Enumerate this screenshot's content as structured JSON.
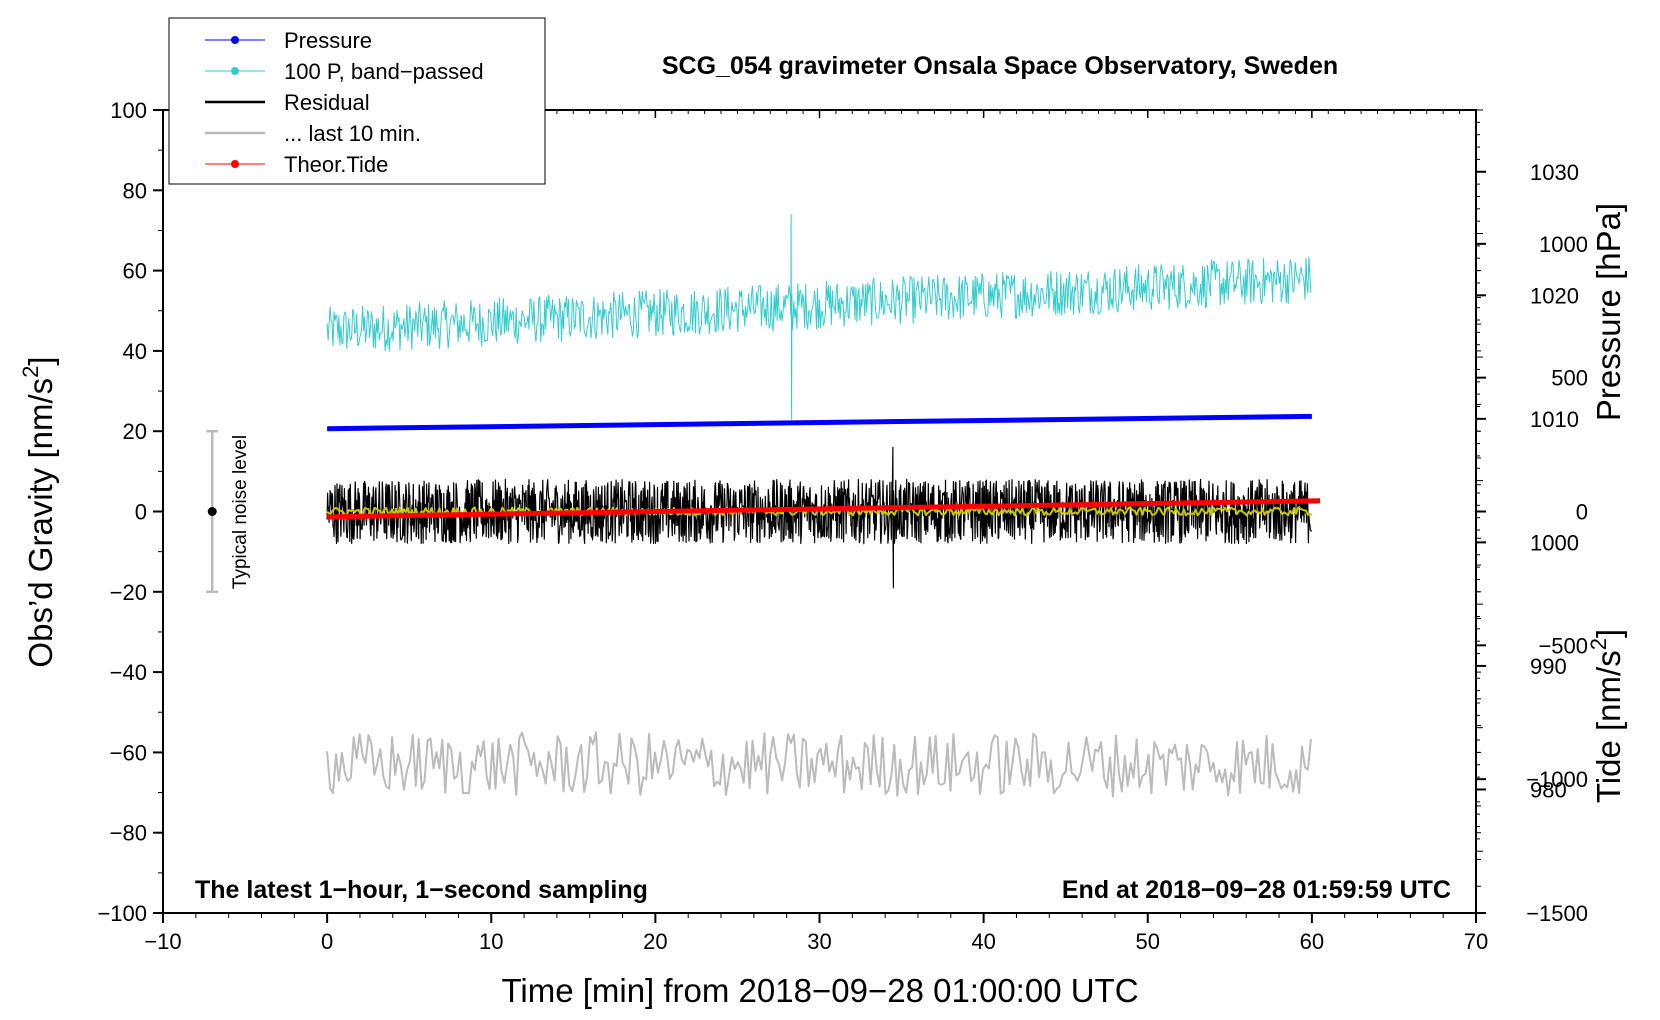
{
  "chart_data": {
    "type": "line",
    "title": "SCG_054 gravimeter Onsala Space Observatory, Sweden",
    "xlabel": "Time [min] from 2018−09−28 01:00:00 UTC",
    "ylabel_left": "Obs’d Gravity [nm/s",
    "ylabel_left_sup": "2",
    "ylabel_left_close": "]",
    "ylabel_pressure": "Pressure [hPa]",
    "ylabel_tide": "Tide [nm/s",
    "ylabel_tide_sup": "2",
    "ylabel_tide_close": "]",
    "xlim": [
      -10,
      70
    ],
    "ylim": [
      -100,
      100
    ],
    "pressure_lim": [
      970,
      1035
    ],
    "tide_lim": [
      -1500,
      1500
    ],
    "x_ticks": [
      "−10",
      "0",
      "10",
      "20",
      "30",
      "40",
      "50",
      "60",
      "70"
    ],
    "y_ticks": [
      "−100",
      "−80",
      "−60",
      "−40",
      "−20",
      "0",
      "20",
      "40",
      "60",
      "80",
      "100"
    ],
    "pressure_ticks": [
      "980",
      "990",
      "1000",
      "1010",
      "1020",
      "1030"
    ],
    "tide_ticks": [
      "−1500",
      "−1000",
      "−500",
      "0",
      "500",
      "1000"
    ],
    "legend": [
      {
        "label": "Pressure",
        "color": "#0000ff",
        "marker": true
      },
      {
        "label": "100 P, band−passed",
        "color": "#33cccc",
        "marker": true
      },
      {
        "label": "Residual",
        "color": "#000000",
        "marker": false
      },
      {
        "label": "... last 10 min.",
        "color": "#bbbbbb",
        "marker": false
      },
      {
        "label": "Theor.Tide",
        "color": "#ff0000",
        "marker": true
      }
    ],
    "annotations": {
      "left_note": "The latest 1−hour, 1−second sampling",
      "right_note": "End at 2018−09−28 01:59:59 UTC",
      "noise_label": "Typical noise level"
    },
    "noise_bar": {
      "x": -7,
      "center": 0,
      "low": -20,
      "high": 20
    },
    "series": [
      {
        "name": "Pressure",
        "axis": "pressure",
        "color": "#0000ff",
        "x": [
          0,
          60
        ],
        "values": [
          1009.2,
          1010.2
        ]
      },
      {
        "name": "100 P, band-passed",
        "axis": "gravity",
        "color": "#33cccc",
        "x_range": [
          0,
          60
        ],
        "center": [
          45,
          58
        ],
        "amplitude": 6,
        "spikes": [
          {
            "x": 28.3,
            "high": 74,
            "low": 23
          }
        ]
      },
      {
        "name": "Residual",
        "axis": "gravity",
        "color": "#000000",
        "x_range": [
          0,
          60
        ],
        "center": 0,
        "amplitude": 8,
        "spikes": [
          {
            "x": 34.5,
            "high": 16,
            "low": -19
          }
        ]
      },
      {
        "name": "Residual (smoothed)",
        "axis": "gravity",
        "color": "#c8c800",
        "x_range": [
          0,
          60
        ],
        "center": 0,
        "amplitude": 1
      },
      {
        "name": "... last 10 min.",
        "axis": "gravity",
        "color": "#bbbbbb",
        "x_range": [
          0,
          60
        ],
        "center": -63,
        "amplitude": 8
      },
      {
        "name": "Theor.Tide",
        "axis": "tide",
        "color": "#ff0000",
        "x": [
          0,
          60.5
        ],
        "values": [
          -20,
          40
        ]
      }
    ]
  }
}
